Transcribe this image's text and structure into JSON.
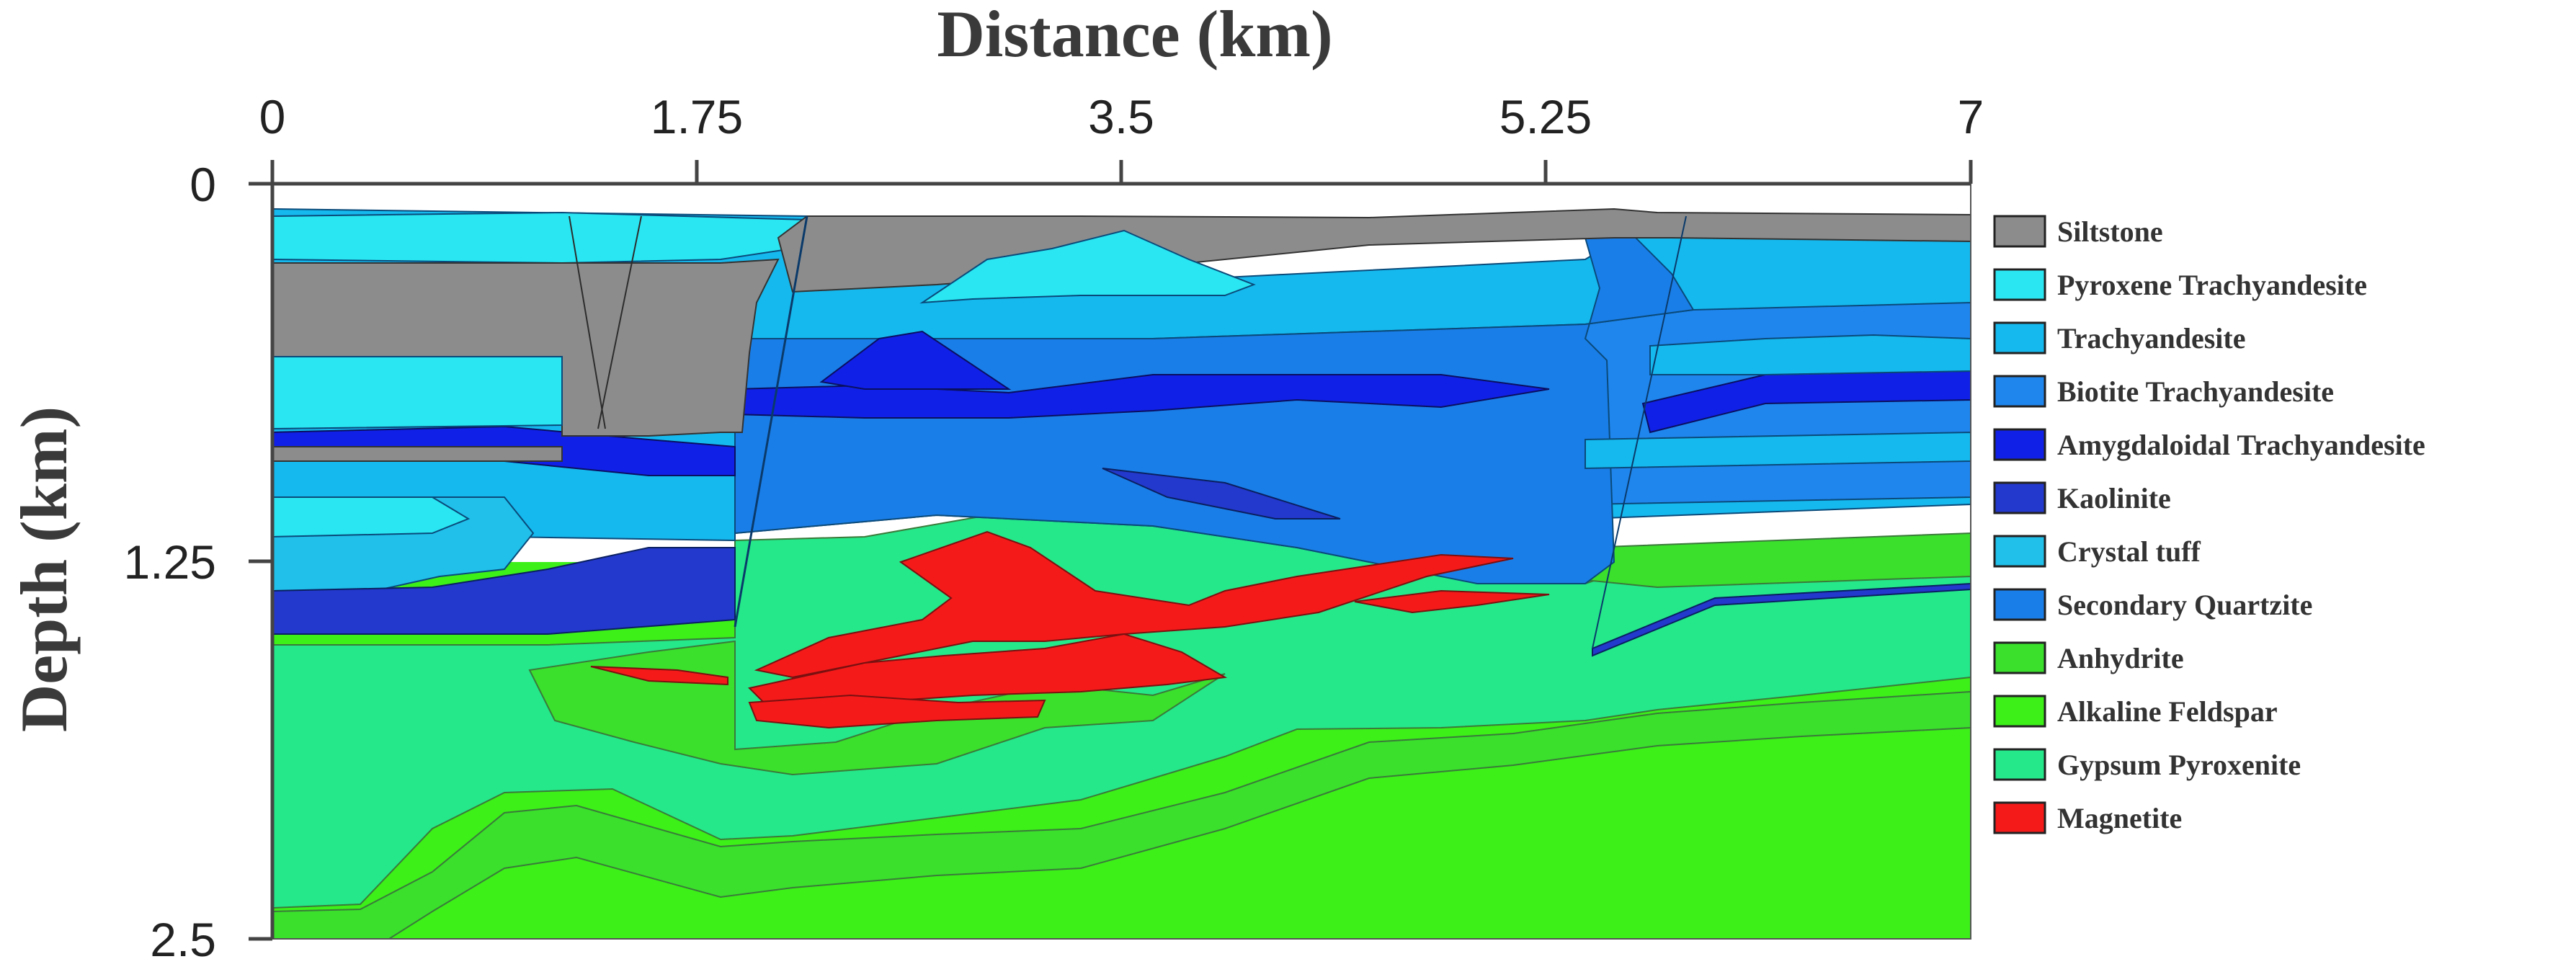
{
  "figure": {
    "x_axis_title": "Distance (km)",
    "y_axis_title": "Depth (km)",
    "x_ticks": [
      "0",
      "1.75",
      "3.5",
      "5.25",
      "7"
    ],
    "y_ticks": [
      "0",
      "1.25",
      "2.5"
    ],
    "x_range_km": [
      0,
      7
    ],
    "y_range_km": [
      0,
      2.5
    ],
    "y_direction": "depth increases downward"
  },
  "legend": {
    "placement": "right",
    "items": [
      {
        "label": "Siltstone",
        "color": "#8c8c8c"
      },
      {
        "label": "Pyroxene Trachyandesite",
        "color": "#29e6f2"
      },
      {
        "label": "Trachyandesite",
        "color": "#15b9ee"
      },
      {
        "label": "Biotite Trachyandesite",
        "color": "#1f86ee"
      },
      {
        "label": "Amygdaloidal Trachyandesite",
        "color": "#1020e6"
      },
      {
        "label": "Kaolinite",
        "color": "#2338cc"
      },
      {
        "label": "Crystal tuff",
        "color": "#20c0ea"
      },
      {
        "label": "Secondary Quartzite",
        "color": "#1a7ee8"
      },
      {
        "label": "Anhydrite",
        "color": "#3ae02c"
      },
      {
        "label": "Alkaline Feldspar",
        "color": "#3cf018"
      },
      {
        "label": "Gypsum Pyroxenite",
        "color": "#24e88a"
      },
      {
        "label": "Magnetite",
        "color": "#f41a1a"
      }
    ]
  }
}
